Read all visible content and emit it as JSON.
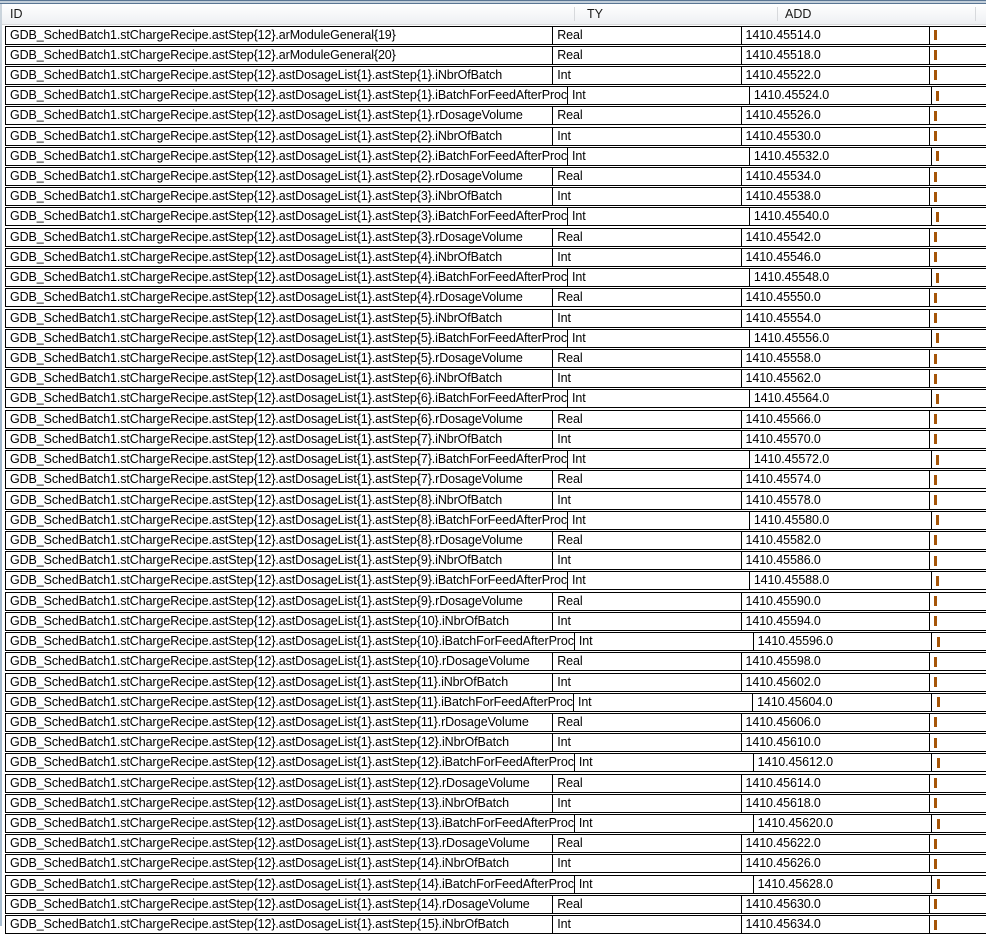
{
  "window": {
    "left_border_color": "#9db4c9",
    "top_border_color": "#5a7694"
  },
  "table": {
    "columns": [
      {
        "key": "id",
        "label": "ID"
      },
      {
        "key": "ty",
        "label": "TY"
      },
      {
        "key": "add",
        "label": "ADD"
      },
      {
        "key": "extra",
        "label": ""
      }
    ],
    "truncated_column": {
      "fragment_color": "#a55508",
      "note_visible_fragment_only": true
    },
    "rows": [
      {
        "id": "GDB_SchedBatch1.stChargeRecipe.astStep{12}.arModuleGeneral{19}",
        "ty": "Real",
        "add": "1410.45514.0"
      },
      {
        "id": "GDB_SchedBatch1.stChargeRecipe.astStep{12}.arModuleGeneral{20}",
        "ty": "Real",
        "add": "1410.45518.0"
      },
      {
        "id": "GDB_SchedBatch1.stChargeRecipe.astStep{12}.astDosageList{1}.astStep{1}.iNbrOfBatch",
        "ty": "Int",
        "add": "1410.45522.0"
      },
      {
        "id": "GDB_SchedBatch1.stChargeRecipe.astStep{12}.astDosageList{1}.astStep{1}.iBatchForFeedAfterProc",
        "ty": "Int",
        "add": "1410.45524.0"
      },
      {
        "id": "GDB_SchedBatch1.stChargeRecipe.astStep{12}.astDosageList{1}.astStep{1}.rDosageVolume",
        "ty": "Real",
        "add": "1410.45526.0"
      },
      {
        "id": "GDB_SchedBatch1.stChargeRecipe.astStep{12}.astDosageList{1}.astStep{2}.iNbrOfBatch",
        "ty": "Int",
        "add": "1410.45530.0"
      },
      {
        "id": "GDB_SchedBatch1.stChargeRecipe.astStep{12}.astDosageList{1}.astStep{2}.iBatchForFeedAfterProc",
        "ty": "Int",
        "add": "1410.45532.0"
      },
      {
        "id": "GDB_SchedBatch1.stChargeRecipe.astStep{12}.astDosageList{1}.astStep{2}.rDosageVolume",
        "ty": "Real",
        "add": "1410.45534.0"
      },
      {
        "id": "GDB_SchedBatch1.stChargeRecipe.astStep{12}.astDosageList{1}.astStep{3}.iNbrOfBatch",
        "ty": "Int",
        "add": "1410.45538.0"
      },
      {
        "id": "GDB_SchedBatch1.stChargeRecipe.astStep{12}.astDosageList{1}.astStep{3}.iBatchForFeedAfterProc",
        "ty": "Int",
        "add": "1410.45540.0"
      },
      {
        "id": "GDB_SchedBatch1.stChargeRecipe.astStep{12}.astDosageList{1}.astStep{3}.rDosageVolume",
        "ty": "Real",
        "add": "1410.45542.0"
      },
      {
        "id": "GDB_SchedBatch1.stChargeRecipe.astStep{12}.astDosageList{1}.astStep{4}.iNbrOfBatch",
        "ty": "Int",
        "add": "1410.45546.0"
      },
      {
        "id": "GDB_SchedBatch1.stChargeRecipe.astStep{12}.astDosageList{1}.astStep{4}.iBatchForFeedAfterProc",
        "ty": "Int",
        "add": "1410.45548.0"
      },
      {
        "id": "GDB_SchedBatch1.stChargeRecipe.astStep{12}.astDosageList{1}.astStep{4}.rDosageVolume",
        "ty": "Real",
        "add": "1410.45550.0"
      },
      {
        "id": "GDB_SchedBatch1.stChargeRecipe.astStep{12}.astDosageList{1}.astStep{5}.iNbrOfBatch",
        "ty": "Int",
        "add": "1410.45554.0"
      },
      {
        "id": "GDB_SchedBatch1.stChargeRecipe.astStep{12}.astDosageList{1}.astStep{5}.iBatchForFeedAfterProc",
        "ty": "Int",
        "add": "1410.45556.0"
      },
      {
        "id": "GDB_SchedBatch1.stChargeRecipe.astStep{12}.astDosageList{1}.astStep{5}.rDosageVolume",
        "ty": "Real",
        "add": "1410.45558.0"
      },
      {
        "id": "GDB_SchedBatch1.stChargeRecipe.astStep{12}.astDosageList{1}.astStep{6}.iNbrOfBatch",
        "ty": "Int",
        "add": "1410.45562.0"
      },
      {
        "id": "GDB_SchedBatch1.stChargeRecipe.astStep{12}.astDosageList{1}.astStep{6}.iBatchForFeedAfterProc",
        "ty": "Int",
        "add": "1410.45564.0"
      },
      {
        "id": "GDB_SchedBatch1.stChargeRecipe.astStep{12}.astDosageList{1}.astStep{6}.rDosageVolume",
        "ty": "Real",
        "add": "1410.45566.0"
      },
      {
        "id": "GDB_SchedBatch1.stChargeRecipe.astStep{12}.astDosageList{1}.astStep{7}.iNbrOfBatch",
        "ty": "Int",
        "add": "1410.45570.0"
      },
      {
        "id": "GDB_SchedBatch1.stChargeRecipe.astStep{12}.astDosageList{1}.astStep{7}.iBatchForFeedAfterProc",
        "ty": "Int",
        "add": "1410.45572.0"
      },
      {
        "id": "GDB_SchedBatch1.stChargeRecipe.astStep{12}.astDosageList{1}.astStep{7}.rDosageVolume",
        "ty": "Real",
        "add": "1410.45574.0"
      },
      {
        "id": "GDB_SchedBatch1.stChargeRecipe.astStep{12}.astDosageList{1}.astStep{8}.iNbrOfBatch",
        "ty": "Int",
        "add": "1410.45578.0"
      },
      {
        "id": "GDB_SchedBatch1.stChargeRecipe.astStep{12}.astDosageList{1}.astStep{8}.iBatchForFeedAfterProc",
        "ty": "Int",
        "add": "1410.45580.0"
      },
      {
        "id": "GDB_SchedBatch1.stChargeRecipe.astStep{12}.astDosageList{1}.astStep{8}.rDosageVolume",
        "ty": "Real",
        "add": "1410.45582.0"
      },
      {
        "id": "GDB_SchedBatch1.stChargeRecipe.astStep{12}.astDosageList{1}.astStep{9}.iNbrOfBatch",
        "ty": "Int",
        "add": "1410.45586.0"
      },
      {
        "id": "GDB_SchedBatch1.stChargeRecipe.astStep{12}.astDosageList{1}.astStep{9}.iBatchForFeedAfterProc",
        "ty": "Int",
        "add": "1410.45588.0"
      },
      {
        "id": "GDB_SchedBatch1.stChargeRecipe.astStep{12}.astDosageList{1}.astStep{9}.rDosageVolume",
        "ty": "Real",
        "add": "1410.45590.0"
      },
      {
        "id": "GDB_SchedBatch1.stChargeRecipe.astStep{12}.astDosageList{1}.astStep{10}.iNbrOfBatch",
        "ty": "Int",
        "add": "1410.45594.0"
      },
      {
        "id": "GDB_SchedBatch1.stChargeRecipe.astStep{12}.astDosageList{1}.astStep{10}.iBatchForFeedAfterProc",
        "ty": "Int",
        "add": "1410.45596.0"
      },
      {
        "id": "GDB_SchedBatch1.stChargeRecipe.astStep{12}.astDosageList{1}.astStep{10}.rDosageVolume",
        "ty": "Real",
        "add": "1410.45598.0"
      },
      {
        "id": "GDB_SchedBatch1.stChargeRecipe.astStep{12}.astDosageList{1}.astStep{11}.iNbrOfBatch",
        "ty": "Int",
        "add": "1410.45602.0"
      },
      {
        "id": "GDB_SchedBatch1.stChargeRecipe.astStep{12}.astDosageList{1}.astStep{11}.iBatchForFeedAfterProc",
        "ty": "Int",
        "add": "1410.45604.0"
      },
      {
        "id": "GDB_SchedBatch1.stChargeRecipe.astStep{12}.astDosageList{1}.astStep{11}.rDosageVolume",
        "ty": "Real",
        "add": "1410.45606.0"
      },
      {
        "id": "GDB_SchedBatch1.stChargeRecipe.astStep{12}.astDosageList{1}.astStep{12}.iNbrOfBatch",
        "ty": "Int",
        "add": "1410.45610.0"
      },
      {
        "id": "GDB_SchedBatch1.stChargeRecipe.astStep{12}.astDosageList{1}.astStep{12}.iBatchForFeedAfterProc",
        "ty": "Int",
        "add": "1410.45612.0"
      },
      {
        "id": "GDB_SchedBatch1.stChargeRecipe.astStep{12}.astDosageList{1}.astStep{12}.rDosageVolume",
        "ty": "Real",
        "add": "1410.45614.0"
      },
      {
        "id": "GDB_SchedBatch1.stChargeRecipe.astStep{12}.astDosageList{1}.astStep{13}.iNbrOfBatch",
        "ty": "Int",
        "add": "1410.45618.0"
      },
      {
        "id": "GDB_SchedBatch1.stChargeRecipe.astStep{12}.astDosageList{1}.astStep{13}.iBatchForFeedAfterProc",
        "ty": "Int",
        "add": "1410.45620.0"
      },
      {
        "id": "GDB_SchedBatch1.stChargeRecipe.astStep{12}.astDosageList{1}.astStep{13}.rDosageVolume",
        "ty": "Real",
        "add": "1410.45622.0"
      },
      {
        "id": "GDB_SchedBatch1.stChargeRecipe.astStep{12}.astDosageList{1}.astStep{14}.iNbrOfBatch",
        "ty": "Int",
        "add": "1410.45626.0"
      },
      {
        "id": "GDB_SchedBatch1.stChargeRecipe.astStep{12}.astDosageList{1}.astStep{14}.iBatchForFeedAfterProc",
        "ty": "Int",
        "add": "1410.45628.0"
      },
      {
        "id": "GDB_SchedBatch1.stChargeRecipe.astStep{12}.astDosageList{1}.astStep{14}.rDosageVolume",
        "ty": "Real",
        "add": "1410.45630.0"
      },
      {
        "id": "GDB_SchedBatch1.stChargeRecipe.astStep{12}.astDosageList{1}.astStep{15}.iNbrOfBatch",
        "ty": "Int",
        "add": "1410.45634.0"
      }
    ]
  }
}
